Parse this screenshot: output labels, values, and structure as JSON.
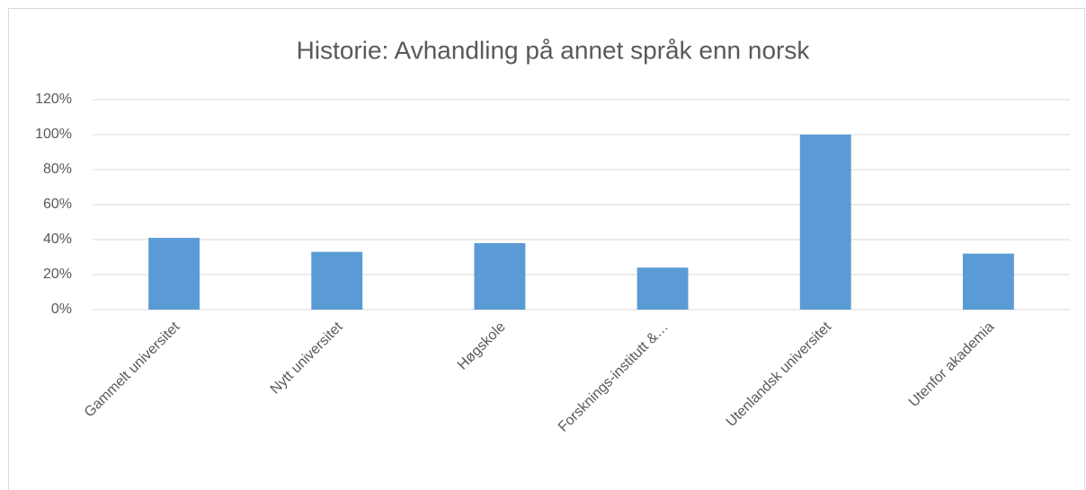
{
  "chart_data": {
    "type": "bar",
    "title": "Historie: Avhandling på annet språk enn norsk",
    "categories": [
      "Gammelt universitet",
      "Nytt universitet",
      "Høgskole",
      "Forsknings-institutt &…",
      "Utenlandsk universitet",
      "Utenfor akademia"
    ],
    "values": [
      41,
      33,
      38,
      24,
      100,
      32
    ],
    "color": "#5b9bd5",
    "ylim": [
      0,
      120
    ],
    "yticks": [
      {
        "value": 0,
        "label": "0%"
      },
      {
        "value": 20,
        "label": "20%"
      },
      {
        "value": 40,
        "label": "40%"
      },
      {
        "value": 60,
        "label": "60%"
      },
      {
        "value": 80,
        "label": "80%"
      },
      {
        "value": 100,
        "label": "100%"
      },
      {
        "value": 120,
        "label": "120%"
      }
    ],
    "grid": true
  }
}
